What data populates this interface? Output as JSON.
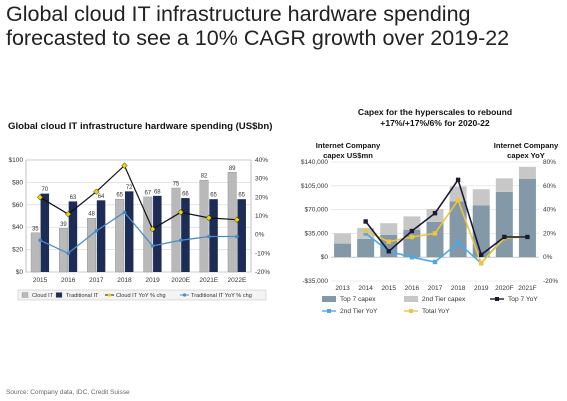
{
  "headline": "Global cloud IT infrastructure hardware spending forecasted to see a 10% CAGR growth over 2019-22",
  "source": "Source: Company data, IDC, Credit Suisse",
  "colors": {
    "cloud_it_bar": "#b9b9b9",
    "traditional_it_bar": "#1c2c55",
    "cloud_yoy_line": "#111111",
    "cloud_yoy_marker": "#f0d000",
    "traditional_yoy_line": "#4a8cc8",
    "top7_capex_bar": "#8399a8",
    "tier2_capex_bar": "#c7c7c7",
    "top7_yoy_line": "#1a1a33",
    "tier2_yoy_line": "#4ba8e6",
    "total_yoy_line": "#f2c33c"
  },
  "chart_data": [
    {
      "type": "bar",
      "title": "Global cloud IT infrastructure hardware spending (US$bn)",
      "categories": [
        "2015",
        "2016",
        "2017",
        "2018",
        "2019",
        "2020E",
        "2021E",
        "2022E"
      ],
      "series": [
        {
          "name": "Cloud IT",
          "kind": "bar",
          "axis": "left",
          "values": [
            35,
            39,
            48,
            65,
            67,
            75,
            82,
            89
          ],
          "labels": [
            "35",
            "39",
            "48",
            "65",
            "67",
            "75",
            "82",
            "89"
          ]
        },
        {
          "name": "Traditional IT",
          "kind": "bar",
          "axis": "left",
          "values": [
            70,
            63,
            64,
            72,
            68,
            66,
            65,
            65
          ],
          "labels": [
            "70",
            "63",
            "64",
            "72",
            "68",
            "66",
            "65",
            "65"
          ]
        },
        {
          "name": "Cloud IT YoY % chg",
          "kind": "line",
          "axis": "right",
          "values": [
            20,
            11,
            23,
            37,
            3,
            12,
            9,
            8
          ]
        },
        {
          "name": "Traditional IT YoY % chg",
          "kind": "line",
          "axis": "right",
          "values": [
            -3,
            -10,
            2,
            12,
            -6,
            -3,
            -1,
            -1
          ]
        }
      ],
      "y_left": {
        "min": 0,
        "max": 100,
        "ticks": [
          "$0",
          "$20",
          "$40",
          "$60",
          "$80",
          "$100"
        ],
        "tick_values": [
          0,
          20,
          40,
          60,
          80,
          100
        ]
      },
      "y_right": {
        "min": -20,
        "max": 40,
        "ticks": [
          "-20%",
          "-10%",
          "0%",
          "10%",
          "20%",
          "30%",
          "40%"
        ],
        "tick_values": [
          -20,
          -10,
          0,
          10,
          20,
          30,
          40
        ]
      },
      "grid": true,
      "legend_position": "bottom"
    },
    {
      "type": "bar",
      "title": "Capex for the hyperscales to rebound +17%/+17%/6% for 2020-22",
      "ylabel_left": "Internet Company capex US$mn",
      "ylabel_right": "Internet Company capex YoY",
      "categories": [
        "2013",
        "2014",
        "2015",
        "2016",
        "2017",
        "2018",
        "2019",
        "2020F",
        "2021F"
      ],
      "series": [
        {
          "name": "Top 7 capex",
          "kind": "stacked_bar",
          "axis": "left",
          "values": [
            20000,
            27000,
            33000,
            40000,
            52000,
            82000,
            76000,
            96000,
            115000
          ]
        },
        {
          "name": "2nd Tier capex",
          "kind": "stacked_bar",
          "axis": "left",
          "values": [
            15000,
            16000,
            17000,
            20000,
            19000,
            22000,
            24000,
            20000,
            18000
          ]
        },
        {
          "name": "Top 7 YoY",
          "kind": "line",
          "axis": "right",
          "values": [
            null,
            30,
            5,
            22,
            37,
            65,
            2,
            17,
            17
          ]
        },
        {
          "name": "2nd Tier YoY",
          "kind": "line",
          "axis": "right",
          "values": [
            null,
            20,
            5,
            0,
            -4,
            12,
            -5,
            17,
            17
          ]
        },
        {
          "name": "Total YoY",
          "kind": "line",
          "axis": "right",
          "values": [
            null,
            22,
            13,
            17,
            20,
            48,
            -5,
            16,
            17
          ]
        }
      ],
      "y_left": {
        "min": -35000,
        "max": 140000,
        "ticks": [
          "-$35,000",
          "$0",
          "$35,000",
          "$70,000",
          "$105,000",
          "$140,000"
        ],
        "tick_values": [
          -35000,
          0,
          35000,
          70000,
          105000,
          140000
        ]
      },
      "y_right": {
        "min": -20,
        "max": 80,
        "ticks": [
          "-20%",
          "0%",
          "20%",
          "40%",
          "60%",
          "80%"
        ],
        "tick_values": [
          -20,
          0,
          20,
          40,
          60,
          80
        ]
      },
      "grid": true,
      "legend_position": "bottom"
    }
  ]
}
